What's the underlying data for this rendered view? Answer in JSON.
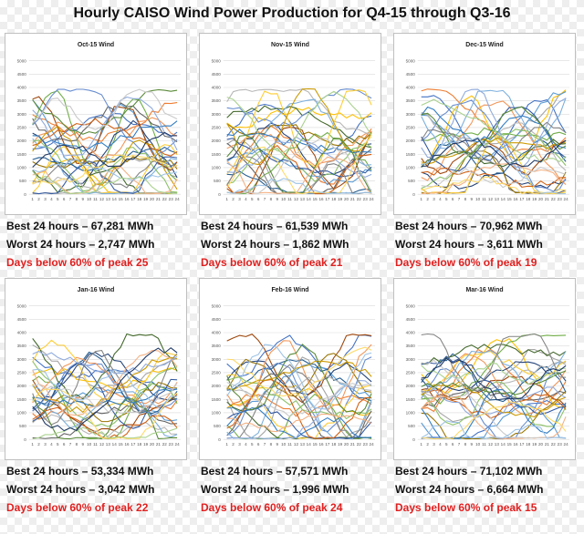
{
  "page_title": "Hourly CAISO Wind Power Production for Q4-15 through Q3-16",
  "colors": {
    "stat_text": "#111111",
    "days_below_text": "#e02020",
    "series_palette": [
      "#4472c4",
      "#ed7d31",
      "#a5a5a5",
      "#ffc000",
      "#5b9bd5",
      "#70ad47",
      "#264478",
      "#9e480e",
      "#636363",
      "#997300",
      "#255e91",
      "#43682b",
      "#698ed0",
      "#f1975a",
      "#b7b7b7",
      "#ffcd33",
      "#7cafdd",
      "#8cc168",
      "#335aa1",
      "#d26012",
      "#848484",
      "#cc9a00",
      "#327dc2",
      "#5a8a39",
      "#8faadc",
      "#f4b183",
      "#c9c9c9",
      "#ffd966",
      "#9dc3e6",
      "#a9d18e",
      "#1f3864"
    ]
  },
  "stats_labels": {
    "best": "Best 24 hours – ",
    "worst": "Worst 24 hours – ",
    "days_below": "Days below 60% of peak  "
  },
  "chart_data": [
    {
      "type": "line",
      "title": "Oct-15 Wind",
      "x": [
        "1",
        "2",
        "3",
        "4",
        "5",
        "6",
        "7",
        "8",
        "9",
        "10",
        "11",
        "12",
        "13",
        "14",
        "15",
        "16",
        "17",
        "18",
        "19",
        "20",
        "21",
        "22",
        "23",
        "24"
      ],
      "yticks": [
        "0",
        "500",
        "1000",
        "1500",
        "2000",
        "2500",
        "3000",
        "3500",
        "4000",
        "4500",
        "5000"
      ],
      "ylim": [
        0,
        5000
      ],
      "series_count": 31,
      "stats": {
        "best": "67,281 MWh",
        "worst": "2,747 MWh",
        "days_below": "25"
      }
    },
    {
      "type": "line",
      "title": "Nov-15 Wind",
      "x": [
        "1",
        "2",
        "3",
        "4",
        "5",
        "6",
        "7",
        "8",
        "9",
        "10",
        "11",
        "12",
        "13",
        "14",
        "15",
        "16",
        "17",
        "18",
        "19",
        "20",
        "21",
        "22",
        "23",
        "24"
      ],
      "yticks": [
        "0",
        "500",
        "1000",
        "1500",
        "2000",
        "2500",
        "3000",
        "3500",
        "4000",
        "4500",
        "5000"
      ],
      "ylim": [
        0,
        5000
      ],
      "series_count": 30,
      "stats": {
        "best": "61,539 MWh",
        "worst": "1,862 MWh",
        "days_below": "21"
      }
    },
    {
      "type": "line",
      "title": "Dec-15 Wind",
      "x": [
        "1",
        "2",
        "3",
        "4",
        "5",
        "6",
        "7",
        "8",
        "9",
        "10",
        "11",
        "12",
        "13",
        "14",
        "15",
        "16",
        "17",
        "18",
        "19",
        "20",
        "21",
        "22",
        "23",
        "24"
      ],
      "yticks": [
        "0",
        "500",
        "1000",
        "1500",
        "2000",
        "2500",
        "3000",
        "3500",
        "4000",
        "4500",
        "5000"
      ],
      "ylim": [
        0,
        5000
      ],
      "series_count": 31,
      "stats": {
        "best": "70,962 MWh",
        "worst": "3,611 MWh",
        "days_below": "19"
      }
    },
    {
      "type": "line",
      "title": "Jan-16 Wind",
      "x": [
        "1",
        "2",
        "3",
        "4",
        "5",
        "6",
        "7",
        "8",
        "9",
        "10",
        "11",
        "12",
        "13",
        "14",
        "15",
        "16",
        "17",
        "18",
        "19",
        "20",
        "21",
        "22",
        "23",
        "24"
      ],
      "yticks": [
        "0",
        "500",
        "1000",
        "1500",
        "2000",
        "2500",
        "3000",
        "3500",
        "4000",
        "4500",
        "5000"
      ],
      "ylim": [
        0,
        5000
      ],
      "series_count": 31,
      "stats": {
        "best": "53,334 MWh",
        "worst": "3,042 MWh",
        "days_below": "22"
      }
    },
    {
      "type": "line",
      "title": "Feb-16 Wind",
      "x": [
        "1",
        "2",
        "3",
        "4",
        "5",
        "6",
        "7",
        "8",
        "9",
        "10",
        "11",
        "12",
        "13",
        "14",
        "15",
        "16",
        "17",
        "18",
        "19",
        "20",
        "21",
        "22",
        "23",
        "24"
      ],
      "yticks": [
        "0",
        "500",
        "1000",
        "1500",
        "2000",
        "2500",
        "3000",
        "3500",
        "4000",
        "4500",
        "5000"
      ],
      "ylim": [
        0,
        5000
      ],
      "series_count": 29,
      "stats": {
        "best": "57,571 MWh",
        "worst": "1,996 MWh",
        "days_below": "24"
      }
    },
    {
      "type": "line",
      "title": "Mar-16 Wind",
      "x": [
        "1",
        "2",
        "3",
        "4",
        "5",
        "6",
        "7",
        "8",
        "9",
        "10",
        "11",
        "12",
        "13",
        "14",
        "15",
        "16",
        "17",
        "18",
        "19",
        "20",
        "21",
        "22",
        "23",
        "24"
      ],
      "yticks": [
        "0",
        "500",
        "1000",
        "1500",
        "2000",
        "2500",
        "3000",
        "3500",
        "4000",
        "4500",
        "5000"
      ],
      "ylim": [
        0,
        5000
      ],
      "series_count": 31,
      "stats": {
        "best": "71,102 MWh",
        "worst": "6,664 MWh",
        "days_below": "15"
      }
    }
  ]
}
